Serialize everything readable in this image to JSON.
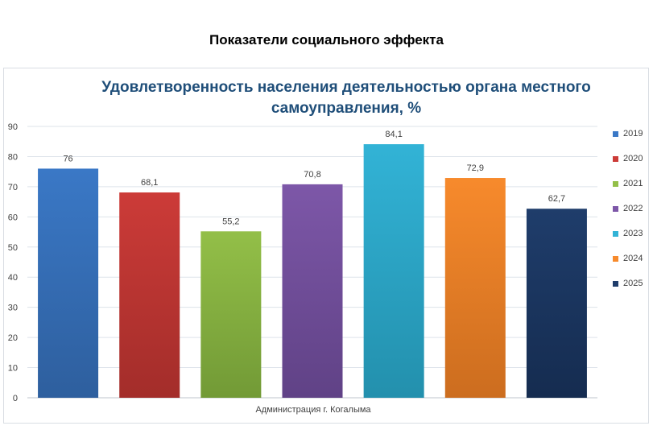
{
  "page_title": "Показатели социального эффекта",
  "chart_data": {
    "type": "bar",
    "title": "Удовлетворенность  населения деятельностью органа местного самоуправления,  %",
    "categories": [
      "Администрация г. Когалыма"
    ],
    "xlabel": "Администрация г. Когалыма",
    "ylabel": "",
    "ylim": [
      0,
      90
    ],
    "yticks": [
      0,
      10,
      20,
      30,
      40,
      50,
      60,
      70,
      80,
      90
    ],
    "grid": true,
    "legend_position": "right",
    "series": [
      {
        "name": "2019",
        "values": [
          76
        ],
        "value_label": "76",
        "color": "#3a78c6",
        "color_dark": "#2e5f9e"
      },
      {
        "name": "2020",
        "values": [
          68.1
        ],
        "value_label": "68,1",
        "color": "#cc3b38",
        "color_dark": "#a32d2a"
      },
      {
        "name": "2021",
        "values": [
          55.2
        ],
        "value_label": "55,2",
        "color": "#93bf48",
        "color_dark": "#729a36"
      },
      {
        "name": "2022",
        "values": [
          70.8
        ],
        "value_label": "70,8",
        "color": "#7d57a8",
        "color_dark": "#604286"
      },
      {
        "name": "2023",
        "values": [
          84.1
        ],
        "value_label": "84,1",
        "color": "#32b3d6",
        "color_dark": "#2390ad"
      },
      {
        "name": "2024",
        "values": [
          72.9
        ],
        "value_label": "72,9",
        "color": "#f78a2c",
        "color_dark": "#cc6d1f"
      },
      {
        "name": "2025",
        "values": [
          62.7
        ],
        "value_label": "62,7",
        "color": "#1f3d6b",
        "color_dark": "#152c50"
      }
    ]
  }
}
